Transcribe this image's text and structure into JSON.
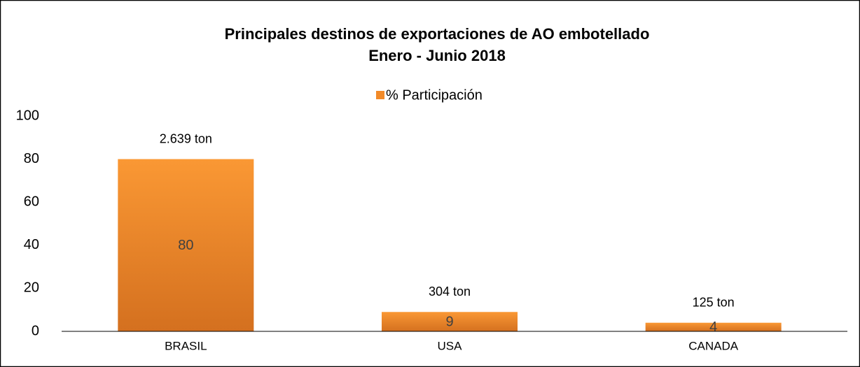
{
  "chart_data": {
    "type": "bar",
    "title": "Principales destinos de exportaciones de AO embotellado",
    "subtitle": "Enero - Junio 2018",
    "categories": [
      "BRASIL",
      "USA",
      "CANADA"
    ],
    "series": [
      {
        "name": "% Participación",
        "color": "#f28a28",
        "values": [
          80,
          9,
          4
        ]
      }
    ],
    "annotations": [
      "2.639 ton",
      "304 ton",
      "125 ton"
    ],
    "ylim": [
      0,
      100
    ],
    "yticks": [
      0,
      20,
      40,
      60,
      80,
      100
    ],
    "grid": false,
    "legend": "top"
  }
}
